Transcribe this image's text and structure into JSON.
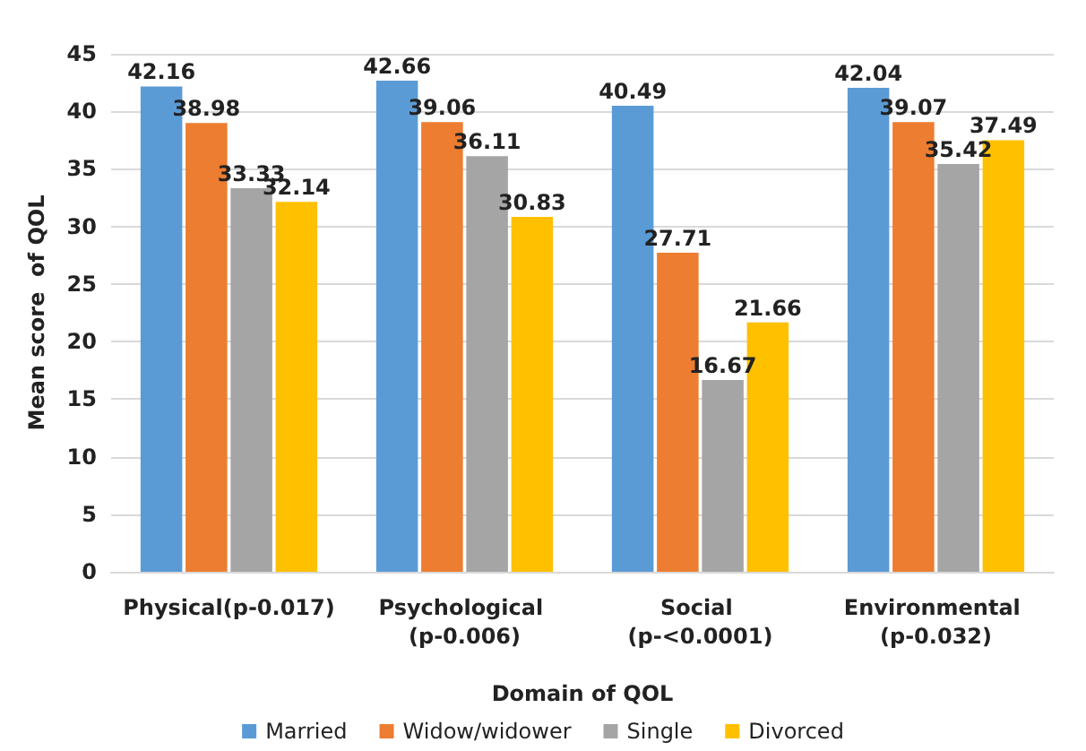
{
  "chart_data": {
    "type": "bar",
    "xlabel": "Domain of QOL",
    "ylabel": "Mean score  of QOL",
    "categories": [
      "Physical(p-0.017)",
      "Psychological (p-0.006)",
      "Social (p-<0.0001)",
      "Environmental (p-0.032)"
    ],
    "series": [
      {
        "name": "Married",
        "color": "#5b9bd5",
        "values": [
          42.16,
          42.66,
          40.49,
          42.04
        ]
      },
      {
        "name": "Widow/widower",
        "color": "#ed7d31",
        "values": [
          38.98,
          39.06,
          27.71,
          39.07
        ]
      },
      {
        "name": "Single",
        "color": "#a5a5a5",
        "values": [
          33.33,
          36.11,
          16.67,
          35.42
        ]
      },
      {
        "name": "Divorced",
        "color": "#ffc000",
        "values": [
          32.14,
          30.83,
          21.66,
          37.49
        ]
      }
    ],
    "ylim": [
      0,
      45
    ],
    "yticks": [
      0,
      5,
      10,
      15,
      20,
      25,
      30,
      35,
      40,
      45
    ],
    "grid": "y",
    "legend": "bottom",
    "data_labels": true
  }
}
